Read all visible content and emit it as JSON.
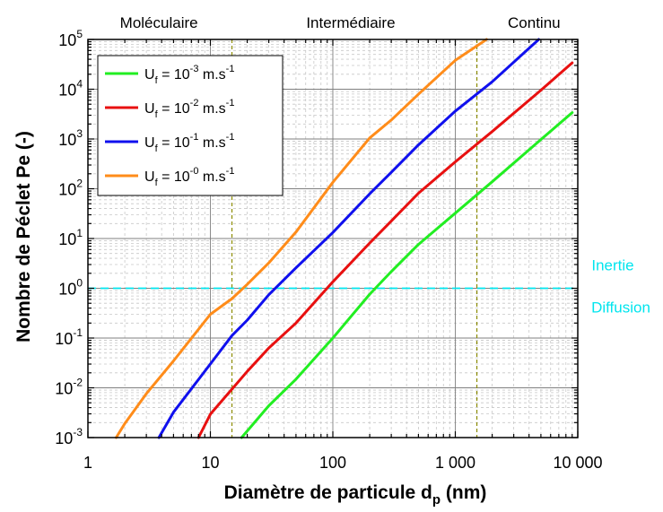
{
  "chart_data": {
    "type": "line",
    "title": "",
    "xlabel": "Diamètre de particule d",
    "xlabel_sub": "p",
    "xlabel_unit": " (nm)",
    "ylabel": "Nombre de Péclet Pe (-)",
    "xscale": "log",
    "yscale": "log",
    "xlim": [
      1,
      10000
    ],
    "ylim": [
      0.001,
      100000
    ],
    "grid": true,
    "legend_position": "top-left",
    "x_ticks": [
      {
        "value": 1,
        "label": "1"
      },
      {
        "value": 10,
        "label": "10"
      },
      {
        "value": 100,
        "label": "100"
      },
      {
        "value": 1000,
        "label": "1 000"
      },
      {
        "value": 10000,
        "label": "10 000"
      }
    ],
    "y_ticks": [
      {
        "value": 0.001,
        "base": "10",
        "exp": "-3"
      },
      {
        "value": 0.01,
        "base": "10",
        "exp": "-2"
      },
      {
        "value": 0.1,
        "base": "10",
        "exp": "-1"
      },
      {
        "value": 1,
        "base": "10",
        "exp": "0"
      },
      {
        "value": 10,
        "base": "10",
        "exp": "1"
      },
      {
        "value": 100,
        "base": "10",
        "exp": "2"
      },
      {
        "value": 1000,
        "base": "10",
        "exp": "3"
      },
      {
        "value": 10000,
        "base": "10",
        "exp": "4"
      },
      {
        "value": 100000,
        "base": "10",
        "exp": "5"
      }
    ],
    "regions": [
      {
        "label": "Moléculaire",
        "x_center": 3.8
      },
      {
        "label": "Intermédiaire",
        "x_center": 140
      },
      {
        "label": "Continu",
        "x_center": 4400
      }
    ],
    "region_boundaries": [
      15,
      1500
    ],
    "threshold": {
      "y": 1,
      "label_above": "Inertie",
      "label_below": "Diffusion",
      "color": "#00e5ee"
    },
    "series": [
      {
        "name": "U_f = 10^-3 m.s^-1",
        "legend": {
          "prefix": "U",
          "sub": "f",
          "mid": " = 10",
          "exp": "-3",
          "unit": " m.s",
          "unit_exp": "-1"
        },
        "color": "#22ee22",
        "x": [
          18,
          30,
          50,
          100,
          200,
          300,
          500,
          1000,
          2000,
          5000,
          9000
        ],
        "y": [
          0.001,
          0.00437,
          0.0149,
          0.1,
          0.759,
          2.16,
          7.59,
          32.4,
          138,
          977,
          3390
        ]
      },
      {
        "name": "U_f = 10^-2 m.s^-1",
        "legend": {
          "prefix": "U",
          "sub": "f",
          "mid": " = 10",
          "exp": "-2",
          "unit": " m.s",
          "unit_exp": "-1"
        },
        "color": "#e81010",
        "x": [
          8,
          10,
          20,
          30,
          50,
          100,
          200,
          300,
          500,
          1000,
          2000,
          5000,
          9000
        ],
        "y": [
          0.001,
          0.00295,
          0.0214,
          0.063,
          0.2,
          1.35,
          8.13,
          22.4,
          81.3,
          347,
          1410,
          9550,
          33900
        ]
      },
      {
        "name": "U_f = 10^-1 m.s^-1",
        "legend": {
          "prefix": "U",
          "sub": "f",
          "mid": " = 10",
          "exp": "-1",
          "unit": " m.s",
          "unit_exp": "-1"
        },
        "color": "#1010ee",
        "x": [
          3.8,
          5,
          10,
          15,
          20,
          30,
          50,
          100,
          200,
          300,
          500,
          1000,
          2000,
          4800
        ],
        "y": [
          0.001,
          0.00324,
          0.0302,
          0.112,
          0.229,
          0.741,
          2.57,
          13.2,
          79.4,
          214,
          759,
          3630,
          14100,
          100000
        ]
      },
      {
        "name": "U_f = 10^-0 m.s^-1",
        "legend": {
          "prefix": "U",
          "sub": "f",
          "mid": " = 10",
          "exp": "-0",
          "unit": " m.s",
          "unit_exp": "-1"
        },
        "color": "#ff8c1a",
        "x": [
          1.7,
          2,
          3,
          5,
          10,
          15,
          20,
          30,
          50,
          100,
          200,
          300,
          500,
          1000,
          1800
        ],
        "y": [
          0.001,
          0.00191,
          0.00759,
          0.0347,
          0.3,
          0.617,
          1.2,
          3.24,
          13.5,
          135,
          1050,
          2400,
          7940,
          38000,
          100000
        ]
      }
    ]
  }
}
